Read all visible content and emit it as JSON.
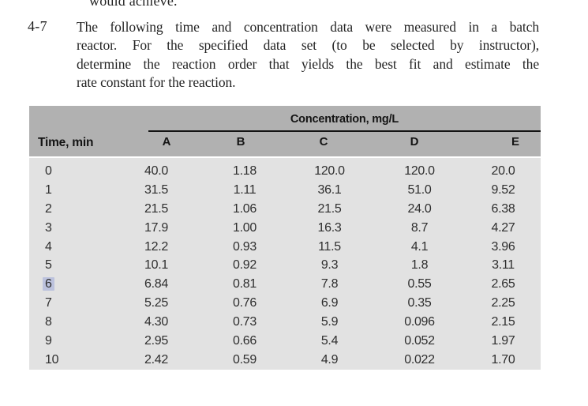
{
  "page": {
    "top_partial_line": "would achieve.",
    "problem_number": "4-7",
    "problem_lines": [
      "The following time and concentration data were measured in a batch",
      "reactor. For the specified data set (to be selected by instructor),",
      "determine the reaction order that yields the best fit and estimate the",
      "rate constant for the reaction."
    ]
  },
  "table": {
    "span_header": "Concentration, mg/L",
    "time_header": "Time, min",
    "columns": [
      "A",
      "B",
      "C",
      "D",
      "E"
    ],
    "rows": [
      {
        "time": "0",
        "highlighted": false,
        "values": [
          "40.0",
          "1.18",
          "120.0",
          "120.0",
          "20.0"
        ]
      },
      {
        "time": "1",
        "highlighted": false,
        "values": [
          "31.5",
          "1.11",
          "36.1",
          "51.0",
          "9.52"
        ]
      },
      {
        "time": "2",
        "highlighted": false,
        "values": [
          "21.5",
          "1.06",
          "21.5",
          "24.0",
          "6.38"
        ]
      },
      {
        "time": "3",
        "highlighted": false,
        "values": [
          "17.9",
          "1.00",
          "16.3",
          "8.7",
          "4.27"
        ]
      },
      {
        "time": "4",
        "highlighted": false,
        "values": [
          "12.2",
          "0.93",
          "11.5",
          "4.1",
          "3.96"
        ]
      },
      {
        "time": "5",
        "highlighted": false,
        "values": [
          "10.1",
          "0.92",
          "9.3",
          "1.8",
          "3.11"
        ]
      },
      {
        "time": "6",
        "highlighted": true,
        "values": [
          "6.84",
          "0.81",
          "7.8",
          "0.55",
          "2.65"
        ]
      },
      {
        "time": "7",
        "highlighted": false,
        "values": [
          "5.25",
          "0.76",
          "6.9",
          "0.35",
          "2.25"
        ]
      },
      {
        "time": "8",
        "highlighted": false,
        "values": [
          "4.30",
          "0.73",
          "5.9",
          "0.096",
          "2.15"
        ]
      },
      {
        "time": "9",
        "highlighted": false,
        "values": [
          "2.95",
          "0.66",
          "5.4",
          "0.052",
          "1.97"
        ]
      },
      {
        "time": "10",
        "highlighted": false,
        "values": [
          "2.42",
          "0.59",
          "4.9",
          "0.022",
          "1.70"
        ]
      }
    ],
    "colors": {
      "header_bg": "#b1b1b1",
      "body_bg": "#e2e2e2",
      "selection_highlight": "#bcc2dd",
      "rule_line": "#141414"
    }
  }
}
